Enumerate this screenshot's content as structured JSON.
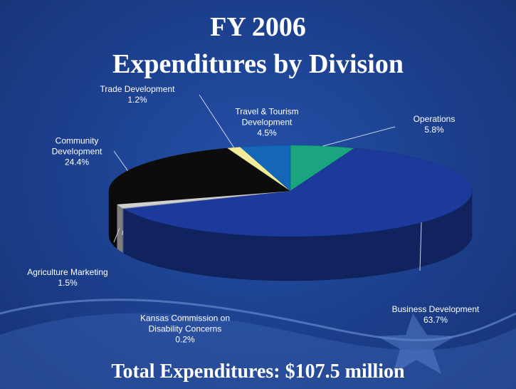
{
  "chart_data": {
    "type": "pie3d",
    "title": "FY 2006",
    "subtitle": "Expenditures by Division",
    "footer": "Total Expenditures:  $107.5 million",
    "categories": [
      "Operations",
      "Business Development",
      "Kansas Commission on Disability Concerns",
      "Agriculture Marketing",
      "Community Development",
      "Trade Development",
      "Travel & Tourism Development"
    ],
    "values": [
      5.8,
      63.7,
      0.2,
      1.5,
      24.4,
      1.2,
      4.5
    ],
    "value_labels": [
      "5.8%",
      "63.7%",
      "0.2%",
      "1.5%",
      "24.4%",
      "1.2%",
      "4.5%"
    ],
    "colors": [
      "#1aa57f",
      "#1c3a9c",
      "#9aa8d8",
      "#d0d0d0",
      "#0c0c0c",
      "#f2ec9a",
      "#1466b8"
    ]
  }
}
